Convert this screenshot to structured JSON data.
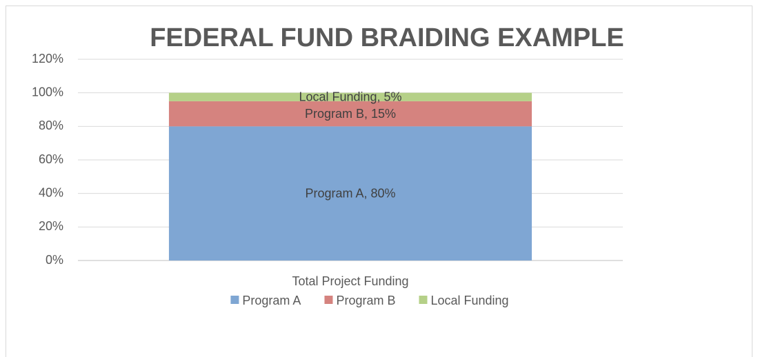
{
  "chart_data": {
    "type": "bar",
    "stacked": true,
    "title": "FEDERAL FUND BRAIDING EXAMPLE",
    "categories": [
      "Total Project Funding"
    ],
    "series": [
      {
        "name": "Program A",
        "color": "#7fa6d3",
        "values": [
          80
        ],
        "value_labels": [
          "Program A, 80%"
        ]
      },
      {
        "name": "Program B",
        "color": "#d5837f",
        "values": [
          15
        ],
        "value_labels": [
          "Program B, 15%"
        ]
      },
      {
        "name": "Local Funding",
        "color": "#b5d088",
        "values": [
          5
        ],
        "value_labels": [
          "Local Funding, 5%"
        ]
      }
    ],
    "ylim": [
      0,
      120
    ],
    "yticks": [
      {
        "value": 0,
        "label": "0%"
      },
      {
        "value": 20,
        "label": "20%"
      },
      {
        "value": 40,
        "label": "40%"
      },
      {
        "value": 60,
        "label": "60%"
      },
      {
        "value": 80,
        "label": "80%"
      },
      {
        "value": 100,
        "label": "100%"
      },
      {
        "value": 120,
        "label": "120%"
      }
    ],
    "grid": true,
    "legend": "bottom"
  }
}
